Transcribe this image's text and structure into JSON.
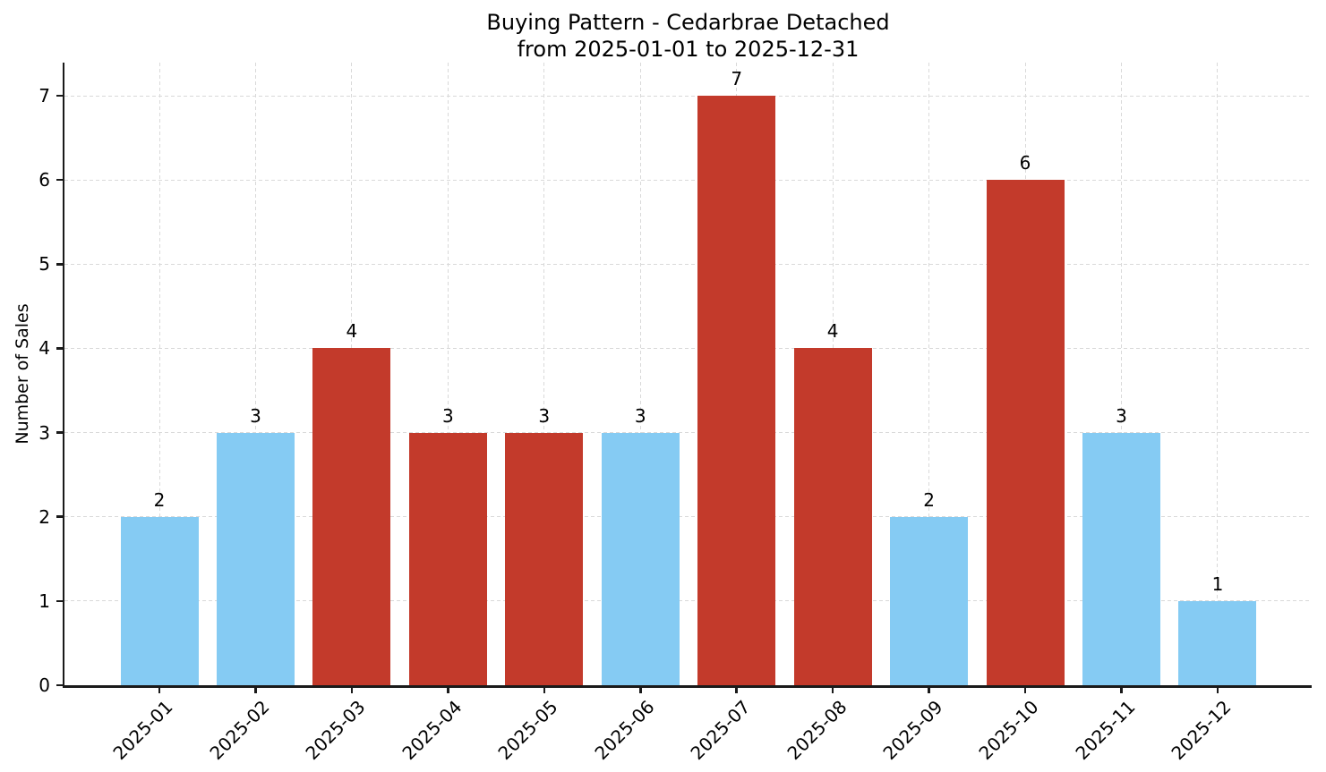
{
  "figure": {
    "background": "#ffffff",
    "title_line1": "Buying Pattern - Cedarbrae Detached",
    "title_line2": "from 2025-01-01 to 2025-12-31"
  },
  "chart_data": {
    "type": "bar",
    "title": "Buying Pattern - Cedarbrae Detached",
    "subtitle": "from 2025-01-01 to 2025-12-31",
    "xlabel": "",
    "ylabel": "Number of Sales",
    "categories": [
      "2025-01",
      "2025-02",
      "2025-03",
      "2025-04",
      "2025-05",
      "2025-06",
      "2025-07",
      "2025-08",
      "2025-09",
      "2025-10",
      "2025-11",
      "2025-12"
    ],
    "values": [
      2,
      3,
      4,
      3,
      3,
      3,
      7,
      4,
      2,
      6,
      3,
      1
    ],
    "value_labels": [
      "2",
      "3",
      "4",
      "3",
      "3",
      "3",
      "7",
      "4",
      "2",
      "6",
      "3",
      "1"
    ],
    "bar_color_keys": [
      "blue",
      "blue",
      "red",
      "red",
      "red",
      "blue",
      "red",
      "red",
      "blue",
      "red",
      "blue",
      "blue"
    ],
    "palette": {
      "blue": "#85CBF3",
      "red": "#C33A2B"
    },
    "yticks": [
      0,
      1,
      2,
      3,
      4,
      5,
      6,
      7
    ],
    "ylim": [
      0,
      7.4
    ],
    "x_tick_rotation": 45,
    "grid": "dashed-both-axes",
    "grid_color": "#d9d9d9",
    "legend": "none",
    "axis_color": "#1a1a1a",
    "text_color": "#000000"
  }
}
